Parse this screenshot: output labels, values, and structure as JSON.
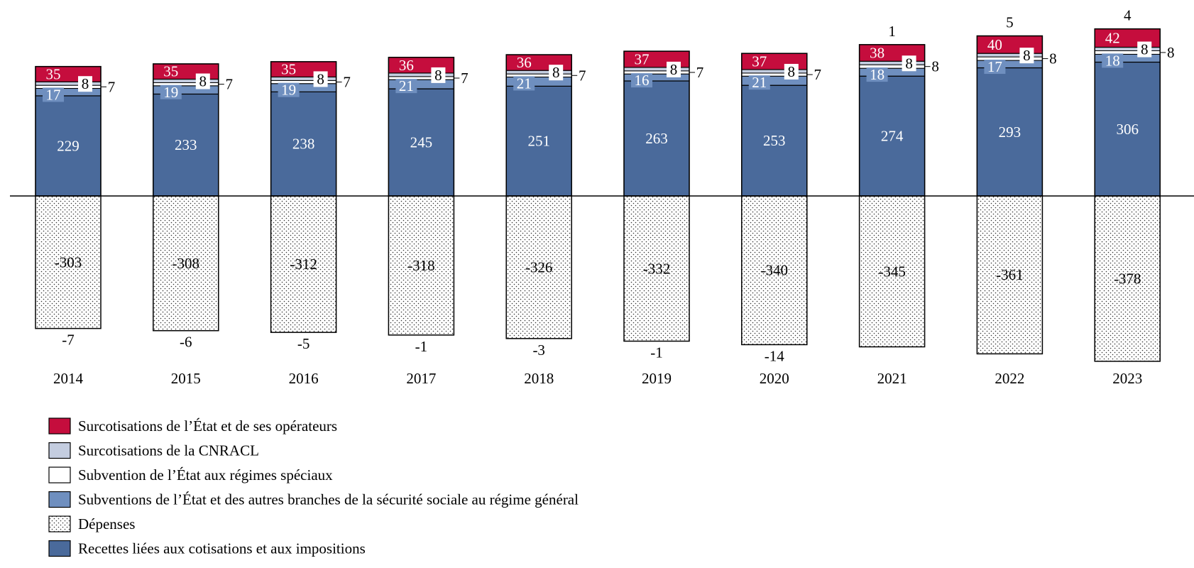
{
  "chart_data": {
    "type": "bar",
    "stacked": true,
    "title": "",
    "xlabel": "",
    "ylabel": "",
    "categories": [
      "2014",
      "2015",
      "2016",
      "2017",
      "2018",
      "2019",
      "2020",
      "2021",
      "2022",
      "2023"
    ],
    "series": [
      {
        "key": "recettes",
        "name": "Recettes liées aux cotisations et aux impositions",
        "color": "#4a6a9b",
        "values": [
          229,
          233,
          238,
          245,
          251,
          263,
          253,
          274,
          293,
          306
        ]
      },
      {
        "key": "subventions",
        "name": "Subventions de l’État et des autres branches de la sécurité sociale au régime général",
        "color": "#6f8fbf",
        "values": [
          17,
          19,
          19,
          21,
          21,
          16,
          21,
          18,
          17,
          18
        ]
      },
      {
        "key": "regimes",
        "name": "Subvention de l’État aux régimes spéciaux",
        "color": "#ffffff",
        "values": [
          7,
          7,
          7,
          7,
          7,
          7,
          7,
          8,
          8,
          8
        ]
      },
      {
        "key": "cnracl",
        "name": "Surcotisations de la CNRACL",
        "color": "#c4cde0",
        "values": [
          8,
          8,
          8,
          8,
          8,
          8,
          8,
          8,
          8,
          8
        ]
      },
      {
        "key": "etat",
        "name": "Surcotisations de l’État et de ses opérateurs",
        "color": "#c50d3d",
        "values": [
          35,
          35,
          35,
          36,
          36,
          37,
          37,
          38,
          40,
          42
        ]
      },
      {
        "key": "depenses",
        "name": "Dépenses",
        "color": "dotted",
        "values": [
          -303,
          -308,
          -312,
          -318,
          -326,
          -332,
          -340,
          -345,
          -361,
          -378
        ]
      }
    ],
    "balance": {
      "values": [
        -7,
        -6,
        -5,
        -1,
        -3,
        -1,
        -14,
        1,
        5,
        4
      ]
    },
    "legend_order": [
      "etat",
      "cnracl",
      "regimes",
      "subventions",
      "depenses",
      "recettes"
    ],
    "legend_position": "bottom-left",
    "grid": false
  }
}
